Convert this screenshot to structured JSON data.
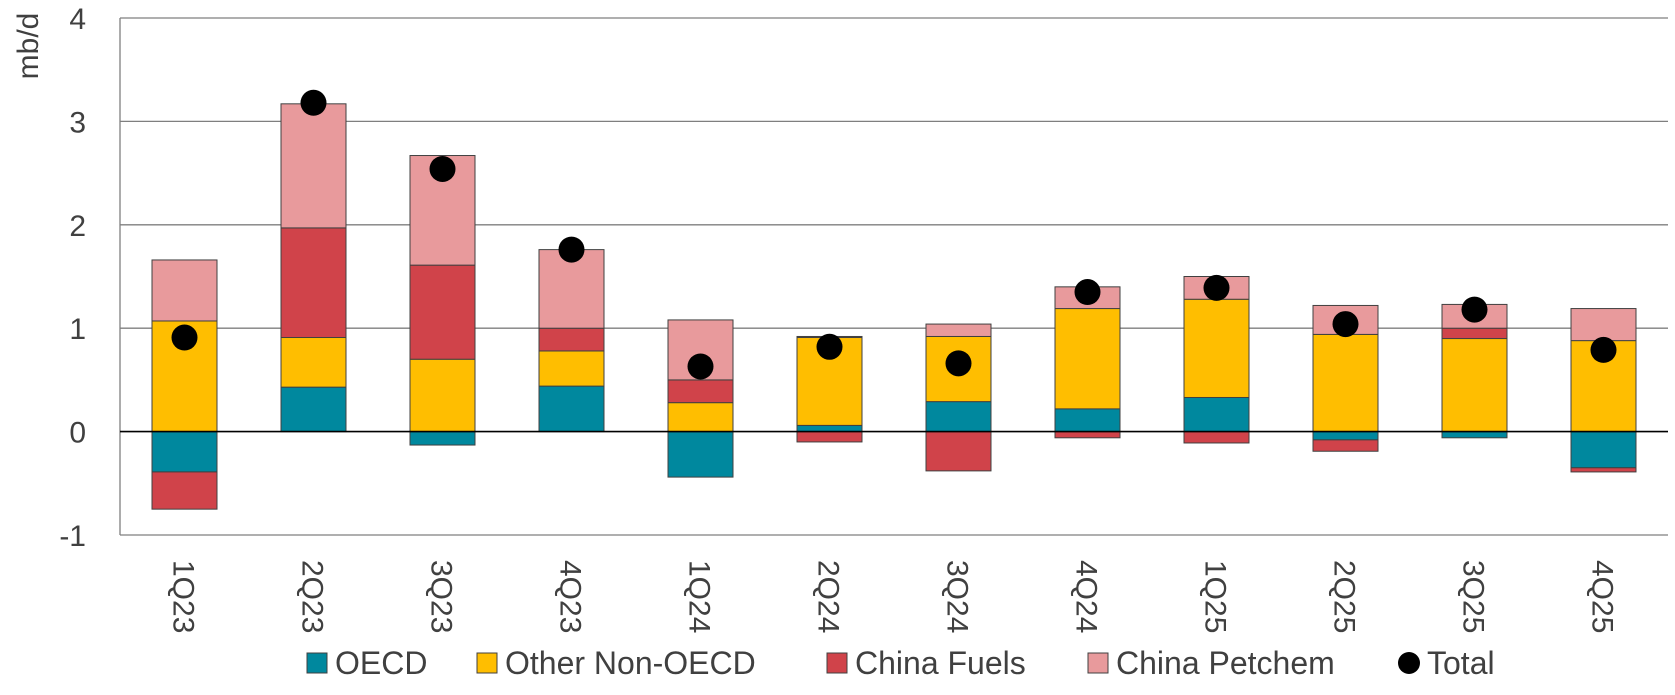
{
  "chart_data": {
    "type": "bar",
    "stacked": true,
    "ylabel": "mb/d",
    "ylim": [
      -1,
      4
    ],
    "yticks": [
      -1,
      0,
      1,
      2,
      3,
      4
    ],
    "grid": true,
    "legend_position": "bottom",
    "categories": [
      "1Q23",
      "2Q23",
      "3Q23",
      "4Q23",
      "1Q24",
      "2Q24",
      "3Q24",
      "4Q24",
      "1Q25",
      "2Q25",
      "3Q25",
      "4Q25"
    ],
    "series": [
      {
        "name": "OECD",
        "color": "#00889E",
        "values": [
          -0.39,
          0.43,
          -0.13,
          0.44,
          -0.44,
          0.06,
          0.29,
          0.22,
          0.33,
          -0.08,
          -0.06,
          -0.35
        ]
      },
      {
        "name": "Other Non-OECD",
        "color": "#FFBE00",
        "values": [
          1.07,
          0.48,
          0.7,
          0.34,
          0.28,
          0.85,
          0.63,
          0.97,
          0.95,
          0.94,
          0.9,
          0.88
        ]
      },
      {
        "name": "China Fuels",
        "color": "#D0434A",
        "values": [
          -0.36,
          1.06,
          0.91,
          0.22,
          0.22,
          -0.1,
          -0.38,
          -0.06,
          -0.11,
          -0.11,
          0.1,
          -0.04
        ]
      },
      {
        "name": "China Petchem",
        "color": "#E89A9C",
        "values": [
          0.59,
          1.2,
          1.06,
          0.76,
          0.58,
          0.01,
          0.12,
          0.21,
          0.22,
          0.28,
          0.23,
          0.31
        ]
      }
    ],
    "total": {
      "name": "Total",
      "color": "#000000",
      "values": [
        0.91,
        3.18,
        2.54,
        1.76,
        0.63,
        0.82,
        0.66,
        1.35,
        1.39,
        1.04,
        1.18,
        0.79
      ]
    }
  }
}
